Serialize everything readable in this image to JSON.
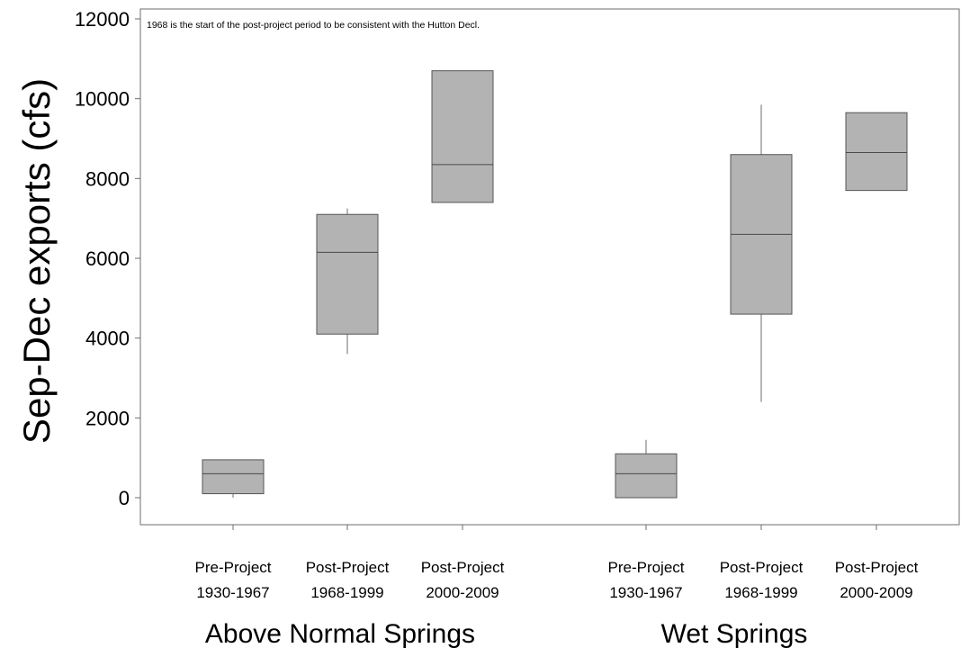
{
  "chart_data": {
    "type": "boxplot",
    "ylabel": "Sep-Dec exports (cfs)",
    "ylim": [
      -700,
      12000
    ],
    "yticks": [
      0,
      2000,
      4000,
      6000,
      8000,
      10000,
      12000
    ],
    "ytick_labels": [
      "0",
      "2000",
      "4000",
      "6000",
      "8000",
      "10000",
      "12000"
    ],
    "note": "1968 is the start of the post-project period to be consistent with the Hutton Decl.",
    "box_color": "#b3b3b3",
    "groups": [
      {
        "label": "Above Normal Springs",
        "boxes": [
          {
            "label_line1": "Pre-Project",
            "label_line2": "1930-1967",
            "whisker_low": 0,
            "q1": 100,
            "median": 600,
            "q3": 950,
            "whisker_high": 950
          },
          {
            "label_line1": "Post-Project",
            "label_line2": "1968-1999",
            "whisker_low": 3600,
            "q1": 4100,
            "median": 6150,
            "q3": 7100,
            "whisker_high": 7250
          },
          {
            "label_line1": "Post-Project",
            "label_line2": "2000-2009",
            "whisker_low": 7400,
            "q1": 7400,
            "median": 8350,
            "q3": 10700,
            "whisker_high": 10700
          }
        ]
      },
      {
        "label": "Wet Springs",
        "boxes": [
          {
            "label_line1": "Pre-Project",
            "label_line2": "1930-1967",
            "whisker_low": 0,
            "q1": 0,
            "median": 600,
            "q3": 1100,
            "whisker_high": 1450
          },
          {
            "label_line1": "Post-Project",
            "label_line2": "1968-1999",
            "whisker_low": 2400,
            "q1": 4600,
            "median": 6600,
            "q3": 8600,
            "whisker_high": 9850
          },
          {
            "label_line1": "Post-Project",
            "label_line2": "2000-2009",
            "whisker_low": 7700,
            "q1": 7700,
            "median": 8650,
            "q3": 9650,
            "whisker_high": 9650
          }
        ]
      }
    ]
  }
}
